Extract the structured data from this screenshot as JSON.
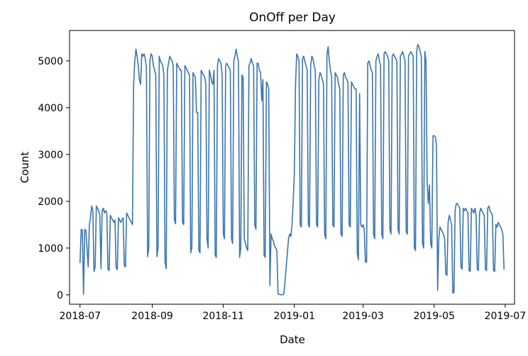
{
  "chart_data": {
    "type": "line",
    "title": "OnOff per Day",
    "xlabel": "Date",
    "ylabel": "Count",
    "x_axis": {
      "type": "date",
      "range": [
        "2018-06-22",
        "2019-07-09"
      ],
      "ticks": [
        "2018-07-01",
        "2018-09-01",
        "2018-11-01",
        "2019-01-01",
        "2019-03-01",
        "2019-05-01",
        "2019-07-01"
      ],
      "tick_labels": [
        "2018-07",
        "2018-09",
        "2018-11",
        "2019-01",
        "2019-03",
        "2019-05",
        "2019-07"
      ]
    },
    "y_axis": {
      "range": [
        -200,
        5650
      ],
      "ticks": [
        0,
        1000,
        2000,
        3000,
        4000,
        5000
      ],
      "tick_labels": [
        "0",
        "1000",
        "2000",
        "3000",
        "4000",
        "5000"
      ]
    },
    "grid": false,
    "legend": "none",
    "series_color": "#3b75af",
    "series": [
      {
        "x": [
          "2018-07-01",
          "2018-07-02",
          "2018-07-03",
          "2018-07-04",
          "2018-07-05",
          "2018-07-06",
          "2018-07-07",
          "2018-07-08",
          "2018-07-09",
          "2018-07-10",
          "2018-07-11",
          "2018-07-12",
          "2018-07-13",
          "2018-07-14",
          "2018-07-15",
          "2018-07-16",
          "2018-07-17",
          "2018-07-18",
          "2018-07-19",
          "2018-07-20",
          "2018-07-21",
          "2018-07-22",
          "2018-07-23",
          "2018-07-24",
          "2018-07-25",
          "2018-07-26",
          "2018-07-27",
          "2018-07-28",
          "2018-07-29",
          "2018-07-30",
          "2018-07-31",
          "2018-08-01",
          "2018-08-02",
          "2018-08-03",
          "2018-08-04",
          "2018-08-05",
          "2018-08-06",
          "2018-08-07",
          "2018-08-08",
          "2018-08-09",
          "2018-08-10",
          "2018-08-11",
          "2018-08-12",
          "2018-08-13",
          "2018-08-14",
          "2018-08-15",
          "2018-08-16",
          "2018-08-17",
          "2018-08-18",
          "2018-08-19",
          "2018-08-20",
          "2018-08-21",
          "2018-08-22",
          "2018-08-23",
          "2018-08-24",
          "2018-08-25",
          "2018-08-26",
          "2018-08-27",
          "2018-08-28",
          "2018-08-29",
          "2018-08-30",
          "2018-08-31",
          "2018-09-01",
          "2018-09-02",
          "2018-09-03",
          "2018-09-04",
          "2018-09-05",
          "2018-09-06",
          "2018-09-07",
          "2018-09-08",
          "2018-09-09",
          "2018-09-10",
          "2018-09-11",
          "2018-09-12",
          "2018-09-13",
          "2018-09-14",
          "2018-09-15",
          "2018-09-16",
          "2018-09-17",
          "2018-09-18",
          "2018-09-19",
          "2018-09-20",
          "2018-09-21",
          "2018-09-22",
          "2018-09-23",
          "2018-09-24",
          "2018-09-25",
          "2018-09-26",
          "2018-09-27",
          "2018-09-28",
          "2018-09-29",
          "2018-09-30",
          "2018-10-01",
          "2018-10-02",
          "2018-10-03",
          "2018-10-04",
          "2018-10-05",
          "2018-10-06",
          "2018-10-07",
          "2018-10-08",
          "2018-10-09",
          "2018-10-10",
          "2018-10-11",
          "2018-10-12",
          "2018-10-13",
          "2018-10-14",
          "2018-10-15",
          "2018-10-16",
          "2018-10-17",
          "2018-10-18",
          "2018-10-19",
          "2018-10-20",
          "2018-10-21",
          "2018-10-22",
          "2018-10-23",
          "2018-10-24",
          "2018-10-25",
          "2018-10-26",
          "2018-10-27",
          "2018-10-28",
          "2018-10-29",
          "2018-10-30",
          "2018-10-31",
          "2018-11-01",
          "2018-11-02",
          "2018-11-03",
          "2018-11-04",
          "2018-11-05",
          "2018-11-06",
          "2018-11-07",
          "2018-11-08",
          "2018-11-09",
          "2018-11-10",
          "2018-11-11",
          "2018-11-12",
          "2018-11-13",
          "2018-11-14",
          "2018-11-15",
          "2018-11-16",
          "2018-11-17",
          "2018-11-18",
          "2018-11-19",
          "2018-11-20",
          "2018-11-21",
          "2018-11-22",
          "2018-11-23",
          "2018-11-24",
          "2018-11-25",
          "2018-11-26",
          "2018-11-27",
          "2018-11-28",
          "2018-11-29",
          "2018-11-30",
          "2018-12-01",
          "2018-12-02",
          "2018-12-03",
          "2018-12-04",
          "2018-12-05",
          "2018-12-06",
          "2018-12-07",
          "2018-12-08",
          "2018-12-09",
          "2018-12-10",
          "2018-12-11",
          "2018-12-12",
          "2018-12-13",
          "2018-12-14",
          "2018-12-15",
          "2018-12-16",
          "2018-12-17",
          "2018-12-18",
          "2018-12-19",
          "2018-12-20",
          "2018-12-21",
          "2018-12-22",
          "2018-12-23",
          "2018-12-24",
          "2018-12-25",
          "2018-12-26",
          "2018-12-27",
          "2018-12-28",
          "2018-12-29",
          "2018-12-30",
          "2018-12-31",
          "2019-01-01",
          "2019-01-02",
          "2019-01-03",
          "2019-01-04",
          "2019-01-05",
          "2019-01-06",
          "2019-01-07",
          "2019-01-08",
          "2019-01-09",
          "2019-01-10",
          "2019-01-11",
          "2019-01-12",
          "2019-01-13",
          "2019-01-14",
          "2019-01-15",
          "2019-01-16",
          "2019-01-17",
          "2019-01-18",
          "2019-01-19",
          "2019-01-20",
          "2019-01-21",
          "2019-01-22",
          "2019-01-23",
          "2019-01-24",
          "2019-01-25",
          "2019-01-26",
          "2019-01-27",
          "2019-01-28",
          "2019-01-29",
          "2019-01-30",
          "2019-01-31",
          "2019-02-01",
          "2019-02-02",
          "2019-02-03",
          "2019-02-04",
          "2019-02-05",
          "2019-02-06",
          "2019-02-07",
          "2019-02-08",
          "2019-02-09",
          "2019-02-10",
          "2019-02-11",
          "2019-02-12",
          "2019-02-13",
          "2019-02-14",
          "2019-02-15",
          "2019-02-16",
          "2019-02-17",
          "2019-02-18",
          "2019-02-19",
          "2019-02-20",
          "2019-02-21",
          "2019-02-22",
          "2019-02-23",
          "2019-02-24",
          "2019-02-25",
          "2019-02-26",
          "2019-02-27",
          "2019-02-28",
          "2019-03-01",
          "2019-03-02",
          "2019-03-03",
          "2019-03-04",
          "2019-03-05",
          "2019-03-06",
          "2019-03-07",
          "2019-03-08",
          "2019-03-09",
          "2019-03-10",
          "2019-03-11",
          "2019-03-12",
          "2019-03-13",
          "2019-03-14",
          "2019-03-15",
          "2019-03-16",
          "2019-03-17",
          "2019-03-18",
          "2019-03-19",
          "2019-03-20",
          "2019-03-21",
          "2019-03-22",
          "2019-03-23",
          "2019-03-24",
          "2019-03-25",
          "2019-03-26",
          "2019-03-27",
          "2019-03-28",
          "2019-03-29",
          "2019-03-30",
          "2019-03-31",
          "2019-04-01",
          "2019-04-02",
          "2019-04-03",
          "2019-04-04",
          "2019-04-05",
          "2019-04-06",
          "2019-04-07",
          "2019-04-08",
          "2019-04-09",
          "2019-04-10",
          "2019-04-11",
          "2019-04-12",
          "2019-04-13",
          "2019-04-14",
          "2019-04-15",
          "2019-04-16",
          "2019-04-17",
          "2019-04-18",
          "2019-04-19",
          "2019-04-20",
          "2019-04-21",
          "2019-04-22",
          "2019-04-23",
          "2019-04-24",
          "2019-04-25",
          "2019-04-26",
          "2019-04-27",
          "2019-04-28",
          "2019-04-29",
          "2019-04-30",
          "2019-05-01",
          "2019-05-02",
          "2019-05-03",
          "2019-05-04",
          "2019-05-05",
          "2019-05-06",
          "2019-05-07",
          "2019-05-08",
          "2019-05-09",
          "2019-05-10",
          "2019-05-11",
          "2019-05-12",
          "2019-05-13",
          "2019-05-14",
          "2019-05-15",
          "2019-05-16",
          "2019-05-17",
          "2019-05-18",
          "2019-05-19",
          "2019-05-20",
          "2019-05-21",
          "2019-05-22",
          "2019-05-23",
          "2019-05-24",
          "2019-05-25",
          "2019-05-26",
          "2019-05-27",
          "2019-05-28",
          "2019-05-29",
          "2019-05-30",
          "2019-05-31",
          "2019-06-01",
          "2019-06-02",
          "2019-06-03",
          "2019-06-04",
          "2019-06-05",
          "2019-06-06",
          "2019-06-07",
          "2019-06-08",
          "2019-06-09",
          "2019-06-10",
          "2019-06-11",
          "2019-06-12",
          "2019-06-13",
          "2019-06-14",
          "2019-06-15",
          "2019-06-16",
          "2019-06-17",
          "2019-06-18",
          "2019-06-19",
          "2019-06-20",
          "2019-06-21",
          "2019-06-22",
          "2019-06-23",
          "2019-06-24",
          "2019-06-25",
          "2019-06-26",
          "2019-06-27",
          "2019-06-28",
          "2019-06-29",
          "2019-06-30"
        ],
        "y": [
          680,
          1400,
          1380,
          10,
          1400,
          1380,
          1000,
          600,
          1500,
          1650,
          1900,
          1800,
          500,
          600,
          1900,
          1850,
          1800,
          1700,
          560,
          1800,
          1850,
          1750,
          1800,
          1750,
          550,
          520,
          1700,
          1650,
          1600,
          1550,
          1600,
          580,
          540,
          1650,
          1600,
          1550,
          1600,
          1650,
          620,
          600,
          1750,
          1700,
          1650,
          1600,
          1550,
          1500,
          4500,
          5000,
          5250,
          5100,
          4900,
          4600,
          4500,
          5150,
          5100,
          5150,
          5050,
          4850,
          820,
          1000,
          5000,
          5150,
          5100,
          4900,
          4800,
          4700,
          820,
          1000,
          5100,
          5000,
          4950,
          4900,
          4700,
          700,
          560,
          4800,
          4950,
          5100,
          5050,
          5000,
          4900,
          1600,
          1520,
          4950,
          4900,
          4850,
          4800,
          4800,
          1550,
          1500,
          4900,
          4850,
          4800,
          4750,
          4700,
          900,
          1000,
          4750,
          4700,
          4650,
          3900,
          3900,
          950,
          900,
          4800,
          4750,
          4700,
          4650,
          4500,
          1200,
          1000,
          4800,
          4700,
          4550,
          4500,
          4800,
          850,
          800,
          4900,
          5050,
          5000,
          4950,
          4700,
          1300,
          1200,
          4900,
          4950,
          4900,
          4850,
          4800,
          1200,
          1100,
          5000,
          5100,
          5250,
          5100,
          5000,
          800,
          1000,
          4700,
          4650,
          1200,
          1100,
          1000,
          950,
          4900,
          4950,
          5050,
          4950,
          4900,
          1500,
          1400,
          4950,
          4950,
          4800,
          4750,
          4150,
          4600,
          850,
          800,
          4550,
          4500,
          4400,
          200,
          1300,
          1200,
          1150,
          1050,
          1000,
          950,
          20,
          10,
          5,
          0,
          5,
          20,
          300,
          600,
          900,
          1200,
          1300,
          1250,
          1500,
          2000,
          2600,
          4500,
          5150,
          5100,
          5000,
          1500,
          1450,
          5050,
          5100,
          5000,
          4900,
          4800,
          1500,
          1450,
          4900,
          5100,
          5050,
          4900,
          4800,
          1500,
          1450,
          4600,
          4750,
          4700,
          4600,
          4500,
          1300,
          1200,
          5150,
          5300,
          5000,
          4800,
          4650,
          1500,
          1450,
          4750,
          4700,
          4650,
          4500,
          4400,
          1300,
          1250,
          4700,
          4750,
          4650,
          4600,
          4550,
          1500,
          1450,
          4550,
          4500,
          4450,
          4400,
          4400,
          900,
          750,
          4300,
          1500,
          1450,
          1500,
          1400,
          700,
          700,
          4950,
          5000,
          4900,
          4800,
          4750,
          1300,
          1200,
          5000,
          5100,
          5150,
          5000,
          4900,
          1300,
          1200,
          5150,
          5200,
          5150,
          5100,
          5000,
          1400,
          1300,
          5100,
          5150,
          5100,
          5050,
          5000,
          1400,
          1300,
          5100,
          5150,
          5200,
          5100,
          5000,
          1350,
          1300,
          5100,
          5150,
          5200,
          5150,
          5100,
          1000,
          950,
          5200,
          5350,
          5300,
          5200,
          5100,
          1100,
          1000,
          5200,
          5000,
          2400,
          1950,
          2350,
          1100,
          1000,
          3400,
          3400,
          3380,
          3200,
          100,
          1200,
          1450,
          1400,
          1350,
          1300,
          1200,
          450,
          420,
          1550,
          1700,
          1600,
          1500,
          40,
          50,
          1800,
          1950,
          1950,
          1900,
          1850,
          600,
          550,
          1850,
          1800,
          1850,
          1800,
          1750,
          520,
          500,
          1850,
          1800,
          1750,
          1850,
          1700,
          550,
          520,
          1750,
          1850,
          1800,
          1750,
          1700,
          550,
          520,
          1850,
          1900,
          1800,
          1750,
          1700,
          520,
          500,
          1500,
          1450,
          1550,
          1500,
          1450,
          1400,
          1300,
          540
        ]
      }
    ]
  }
}
